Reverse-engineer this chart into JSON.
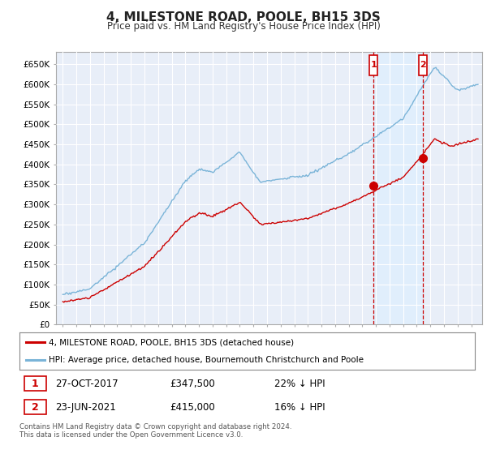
{
  "title": "4, MILESTONE ROAD, POOLE, BH15 3DS",
  "subtitle": "Price paid vs. HM Land Registry's House Price Index (HPI)",
  "ylim": [
    0,
    680000
  ],
  "yticks": [
    0,
    50000,
    100000,
    150000,
    200000,
    250000,
    300000,
    350000,
    400000,
    450000,
    500000,
    550000,
    600000,
    650000
  ],
  "ytick_labels": [
    "£0",
    "£50K",
    "£100K",
    "£150K",
    "£200K",
    "£250K",
    "£300K",
    "£350K",
    "£400K",
    "£450K",
    "£500K",
    "£550K",
    "£600K",
    "£650K"
  ],
  "hpi_color": "#7ab4d8",
  "price_color": "#cc0000",
  "dashed_color": "#cc0000",
  "shade_color": "#ddeeff",
  "background_color": "#e8eef8",
  "grid_color": "#ffffff",
  "legend_label_red": "4, MILESTONE ROAD, POOLE, BH15 3DS (detached house)",
  "legend_label_blue": "HPI: Average price, detached house, Bournemouth Christchurch and Poole",
  "sale1_date": "27-OCT-2017",
  "sale1_price": "£347,500",
  "sale1_hpi": "22% ↓ HPI",
  "sale2_date": "23-JUN-2021",
  "sale2_price": "£415,000",
  "sale2_hpi": "16% ↓ HPI",
  "footnote": "Contains HM Land Registry data © Crown copyright and database right 2024.\nThis data is licensed under the Open Government Licence v3.0.",
  "sale1_x": 2017.83,
  "sale1_y": 347500,
  "sale2_x": 2021.47,
  "sale2_y": 415000,
  "xlim_left": 1994.5,
  "xlim_right": 2025.8
}
